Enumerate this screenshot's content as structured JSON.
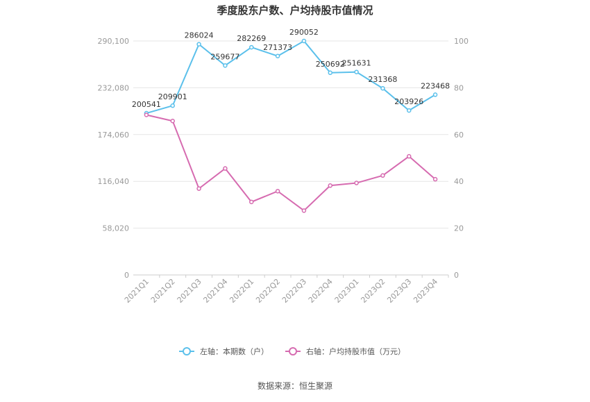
{
  "chart_data": {
    "type": "line",
    "title": "季度股东户数、户均持股市值情况",
    "categories": [
      "2021Q1",
      "2021Q2",
      "2021Q3",
      "2021Q4",
      "2022Q1",
      "2022Q2",
      "2022Q3",
      "2022Q4",
      "2023Q1",
      "2023Q2",
      "2023Q3",
      "2023Q4"
    ],
    "left_axis": {
      "ylim": [
        0,
        290100
      ],
      "ticks": [
        0,
        58020,
        116040,
        174060,
        232080,
        290100
      ],
      "tick_labels": [
        "0",
        "58,020",
        "116,040",
        "174,060",
        "232,080",
        "290,100"
      ]
    },
    "right_axis": {
      "ylim": [
        0,
        100
      ],
      "ticks": [
        0,
        20,
        40,
        60,
        80,
        100
      ],
      "tick_labels": [
        "0",
        "20",
        "40",
        "60",
        "80",
        "100"
      ]
    },
    "series": [
      {
        "name": "左轴：本期数（户）",
        "axis": "left",
        "color": "#5bc0eb",
        "values": [
          200541,
          209901,
          286024,
          259677,
          282269,
          271373,
          290052,
          250692,
          251631,
          231368,
          203926,
          223468
        ],
        "labels": [
          "200541",
          "209901",
          "286024",
          "259677",
          "282269",
          "271373",
          "290052",
          "250692",
          "251631",
          "231368",
          "203926",
          "223468"
        ]
      },
      {
        "name": "右轴：户均持股市值（万元）",
        "axis": "right",
        "color": "#d66bb0",
        "values": [
          68.4,
          65.8,
          36.9,
          45.5,
          31.2,
          35.8,
          27.5,
          38.2,
          39.3,
          42.5,
          50.7,
          40.9
        ]
      }
    ],
    "grid": true,
    "legend_position": "bottom"
  },
  "source": "数据来源：恒生聚源"
}
